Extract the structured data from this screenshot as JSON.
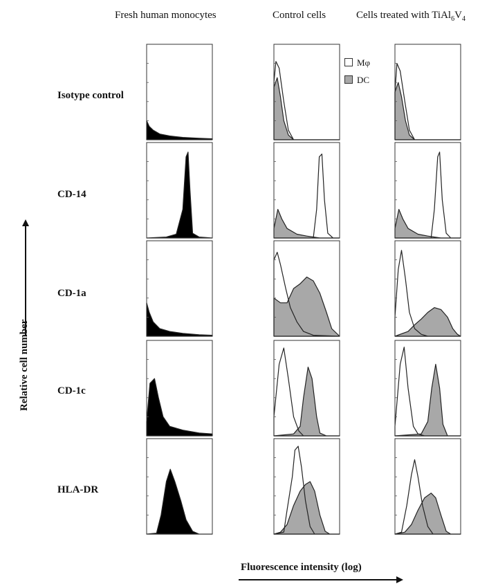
{
  "chart_data": {
    "type": "area",
    "columns": [
      {
        "title_main": "Fresh human monocytes",
        "title_subs": []
      },
      {
        "title_main": "Control cells",
        "title_subs": []
      },
      {
        "title_main": "Cells treated with TiAl",
        "title_subs": [
          "6",
          "V",
          "4"
        ]
      }
    ],
    "rows": [
      "Isotype control",
      "CD-14",
      "CD-1a",
      "CD-1c",
      "HLA-DR"
    ],
    "ylabel": "Relative cell number",
    "xlabel": "Fluorescence intensity (log)",
    "legend": {
      "position": "top-right of control cells column",
      "entries": [
        {
          "label": "Mφ",
          "fill": "#ffffff"
        },
        {
          "label": "DC",
          "fill": "#a8a8a8"
        }
      ]
    },
    "colors": {
      "monocytes": "#000000",
      "dc": "#a8a8a8",
      "macrophage": "#ffffff",
      "line": "#222222"
    },
    "xlim": [
      0,
      1
    ],
    "ylim": [
      0,
      1
    ],
    "series": {
      "monocytes": [
        [
          [
            0,
            0.2
          ],
          [
            0.04,
            0.14
          ],
          [
            0.1,
            0.1
          ],
          [
            0.2,
            0.06
          ],
          [
            0.35,
            0.04
          ],
          [
            0.55,
            0.025
          ],
          [
            0.8,
            0.015
          ],
          [
            1,
            0.01
          ]
        ],
        [
          [
            0,
            0
          ],
          [
            0.3,
            0.01
          ],
          [
            0.45,
            0.04
          ],
          [
            0.55,
            0.3
          ],
          [
            0.6,
            0.85
          ],
          [
            0.63,
            0.9
          ],
          [
            0.66,
            0.5
          ],
          [
            0.7,
            0.05
          ],
          [
            0.8,
            0.01
          ],
          [
            1,
            0
          ]
        ],
        [
          [
            0,
            0.35
          ],
          [
            0.04,
            0.25
          ],
          [
            0.1,
            0.15
          ],
          [
            0.2,
            0.08
          ],
          [
            0.35,
            0.05
          ],
          [
            0.55,
            0.03
          ],
          [
            0.8,
            0.015
          ],
          [
            1,
            0.01
          ]
        ],
        [
          [
            0,
            0.15
          ],
          [
            0.05,
            0.55
          ],
          [
            0.12,
            0.6
          ],
          [
            0.18,
            0.4
          ],
          [
            0.25,
            0.2
          ],
          [
            0.35,
            0.1
          ],
          [
            0.55,
            0.06
          ],
          [
            0.8,
            0.03
          ],
          [
            1,
            0.02
          ]
        ],
        [
          [
            0,
            0
          ],
          [
            0.15,
            0.01
          ],
          [
            0.22,
            0.2
          ],
          [
            0.3,
            0.55
          ],
          [
            0.36,
            0.68
          ],
          [
            0.43,
            0.55
          ],
          [
            0.52,
            0.35
          ],
          [
            0.6,
            0.15
          ],
          [
            0.7,
            0.03
          ],
          [
            0.8,
            0
          ],
          [
            1,
            0
          ]
        ]
      ],
      "control_dc": [
        [
          [
            0,
            0.55
          ],
          [
            0.05,
            0.65
          ],
          [
            0.1,
            0.45
          ],
          [
            0.15,
            0.2
          ],
          [
            0.22,
            0.05
          ],
          [
            0.3,
            0
          ],
          [
            1,
            0
          ]
        ],
        [
          [
            0,
            0.1
          ],
          [
            0.06,
            0.3
          ],
          [
            0.12,
            0.2
          ],
          [
            0.2,
            0.1
          ],
          [
            0.35,
            0.04
          ],
          [
            0.5,
            0.02
          ],
          [
            0.6,
            0.01
          ],
          [
            0.7,
            0
          ],
          [
            1,
            0
          ]
        ],
        [
          [
            0,
            0.4
          ],
          [
            0.1,
            0.35
          ],
          [
            0.2,
            0.35
          ],
          [
            0.3,
            0.5
          ],
          [
            0.4,
            0.55
          ],
          [
            0.5,
            0.62
          ],
          [
            0.6,
            0.58
          ],
          [
            0.7,
            0.45
          ],
          [
            0.8,
            0.25
          ],
          [
            0.88,
            0.08
          ],
          [
            1,
            0
          ]
        ],
        [
          [
            0,
            0
          ],
          [
            0.3,
            0.02
          ],
          [
            0.4,
            0.1
          ],
          [
            0.45,
            0.4
          ],
          [
            0.52,
            0.72
          ],
          [
            0.58,
            0.6
          ],
          [
            0.65,
            0.2
          ],
          [
            0.7,
            0.03
          ],
          [
            0.8,
            0
          ],
          [
            1,
            0
          ]
        ],
        [
          [
            0,
            0
          ],
          [
            0.1,
            0.02
          ],
          [
            0.2,
            0.1
          ],
          [
            0.3,
            0.3
          ],
          [
            0.4,
            0.45
          ],
          [
            0.48,
            0.52
          ],
          [
            0.55,
            0.55
          ],
          [
            0.62,
            0.45
          ],
          [
            0.7,
            0.2
          ],
          [
            0.78,
            0.03
          ],
          [
            0.85,
            0
          ],
          [
            1,
            0
          ]
        ]
      ],
      "control_mac": [
        [
          [
            0,
            0.6
          ],
          [
            0.03,
            0.82
          ],
          [
            0.08,
            0.75
          ],
          [
            0.15,
            0.4
          ],
          [
            0.22,
            0.1
          ],
          [
            0.3,
            0
          ],
          [
            1,
            0
          ]
        ],
        [
          [
            0,
            0
          ],
          [
            0.6,
            0
          ],
          [
            0.65,
            0.3
          ],
          [
            0.69,
            0.85
          ],
          [
            0.73,
            0.88
          ],
          [
            0.77,
            0.4
          ],
          [
            0.82,
            0.05
          ],
          [
            0.9,
            0
          ],
          [
            1,
            0
          ]
        ],
        [
          [
            0,
            0.8
          ],
          [
            0.05,
            0.88
          ],
          [
            0.1,
            0.75
          ],
          [
            0.18,
            0.5
          ],
          [
            0.25,
            0.3
          ],
          [
            0.35,
            0.15
          ],
          [
            0.45,
            0.05
          ],
          [
            0.6,
            0.01
          ],
          [
            1,
            0
          ]
        ],
        [
          [
            0,
            0.2
          ],
          [
            0.08,
            0.75
          ],
          [
            0.15,
            0.92
          ],
          [
            0.22,
            0.6
          ],
          [
            0.3,
            0.2
          ],
          [
            0.38,
            0.05
          ],
          [
            0.45,
            0
          ],
          [
            1,
            0
          ]
        ],
        [
          [
            0,
            0
          ],
          [
            0.15,
            0.02
          ],
          [
            0.2,
            0.25
          ],
          [
            0.28,
            0.6
          ],
          [
            0.32,
            0.88
          ],
          [
            0.37,
            0.92
          ],
          [
            0.42,
            0.7
          ],
          [
            0.48,
            0.35
          ],
          [
            0.55,
            0.08
          ],
          [
            0.62,
            0
          ],
          [
            1,
            0
          ]
        ]
      ],
      "treated_dc": [
        [
          [
            0,
            0.5
          ],
          [
            0.05,
            0.6
          ],
          [
            0.1,
            0.45
          ],
          [
            0.16,
            0.2
          ],
          [
            0.22,
            0.05
          ],
          [
            0.3,
            0
          ],
          [
            1,
            0
          ]
        ],
        [
          [
            0,
            0.1
          ],
          [
            0.06,
            0.3
          ],
          [
            0.12,
            0.2
          ],
          [
            0.2,
            0.1
          ],
          [
            0.35,
            0.04
          ],
          [
            0.5,
            0.02
          ],
          [
            0.6,
            0.01
          ],
          [
            0.7,
            0
          ],
          [
            1,
            0
          ]
        ],
        [
          [
            0,
            0
          ],
          [
            0.2,
            0.05
          ],
          [
            0.3,
            0.12
          ],
          [
            0.4,
            0.18
          ],
          [
            0.5,
            0.25
          ],
          [
            0.6,
            0.3
          ],
          [
            0.7,
            0.28
          ],
          [
            0.8,
            0.2
          ],
          [
            0.88,
            0.08
          ],
          [
            0.95,
            0.02
          ],
          [
            1,
            0
          ]
        ],
        [
          [
            0,
            0
          ],
          [
            0.4,
            0.02
          ],
          [
            0.5,
            0.15
          ],
          [
            0.56,
            0.5
          ],
          [
            0.62,
            0.75
          ],
          [
            0.68,
            0.5
          ],
          [
            0.73,
            0.12
          ],
          [
            0.8,
            0
          ],
          [
            1,
            0
          ]
        ],
        [
          [
            0,
            0
          ],
          [
            0.15,
            0.02
          ],
          [
            0.25,
            0.1
          ],
          [
            0.35,
            0.25
          ],
          [
            0.45,
            0.38
          ],
          [
            0.55,
            0.43
          ],
          [
            0.62,
            0.38
          ],
          [
            0.7,
            0.2
          ],
          [
            0.78,
            0.03
          ],
          [
            0.85,
            0
          ],
          [
            1,
            0
          ]
        ]
      ],
      "treated_mac": [
        [
          [
            0,
            0.5
          ],
          [
            0.03,
            0.8
          ],
          [
            0.08,
            0.72
          ],
          [
            0.15,
            0.4
          ],
          [
            0.22,
            0.1
          ],
          [
            0.3,
            0
          ],
          [
            1,
            0
          ]
        ],
        [
          [
            0,
            0
          ],
          [
            0.55,
            0
          ],
          [
            0.6,
            0.3
          ],
          [
            0.65,
            0.85
          ],
          [
            0.68,
            0.9
          ],
          [
            0.72,
            0.4
          ],
          [
            0.78,
            0.05
          ],
          [
            0.85,
            0
          ],
          [
            1,
            0
          ]
        ],
        [
          [
            0,
            0.2
          ],
          [
            0.05,
            0.7
          ],
          [
            0.1,
            0.9
          ],
          [
            0.16,
            0.6
          ],
          [
            0.22,
            0.25
          ],
          [
            0.3,
            0.08
          ],
          [
            0.4,
            0.02
          ],
          [
            0.5,
            0
          ],
          [
            1,
            0
          ]
        ],
        [
          [
            0,
            0.1
          ],
          [
            0.08,
            0.75
          ],
          [
            0.14,
            0.93
          ],
          [
            0.2,
            0.5
          ],
          [
            0.28,
            0.1
          ],
          [
            0.35,
            0.02
          ],
          [
            0.45,
            0
          ],
          [
            1,
            0
          ]
        ],
        [
          [
            0,
            0
          ],
          [
            0.1,
            0.02
          ],
          [
            0.18,
            0.3
          ],
          [
            0.25,
            0.62
          ],
          [
            0.3,
            0.78
          ],
          [
            0.35,
            0.6
          ],
          [
            0.42,
            0.3
          ],
          [
            0.5,
            0.08
          ],
          [
            0.58,
            0
          ],
          [
            1,
            0
          ]
        ]
      ]
    }
  }
}
